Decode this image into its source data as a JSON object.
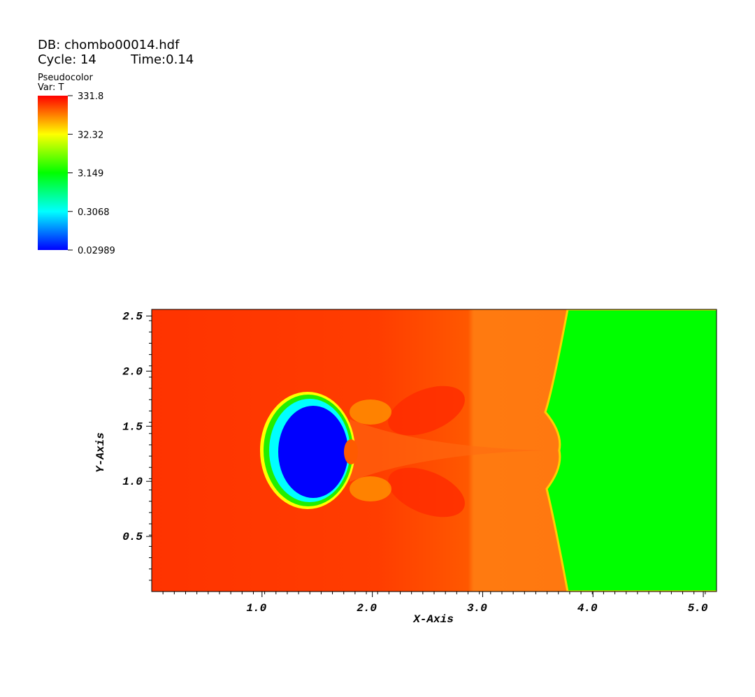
{
  "header": {
    "db": "DB: chombo00014.hdf",
    "cycle": "Cycle: 14",
    "time": "Time:0.14"
  },
  "legend": {
    "title": "Pseudocolor",
    "var": "Var: T",
    "log": true,
    "ticks": [
      331.8,
      32.32,
      3.149,
      0.3068,
      0.02989
    ]
  },
  "chart_data": {
    "type": "pseudocolor",
    "x_label": "X-Axis",
    "y_label": "Y-Axis",
    "xlim": [
      0,
      5.12
    ],
    "ylim": [
      0,
      2.56
    ],
    "xticks": [
      {
        "value": 1,
        "label": "1.0"
      },
      {
        "value": 2,
        "label": "2.0"
      },
      {
        "value": 3,
        "label": "3.0"
      },
      {
        "value": 4,
        "label": "4.0"
      },
      {
        "value": 5,
        "label": "5.0"
      }
    ],
    "yticks": [
      0.5,
      {
        "value": 1,
        "label": "1.0"
      },
      1.5,
      {
        "value": 2,
        "label": "2.0"
      },
      2.5
    ]
  }
}
